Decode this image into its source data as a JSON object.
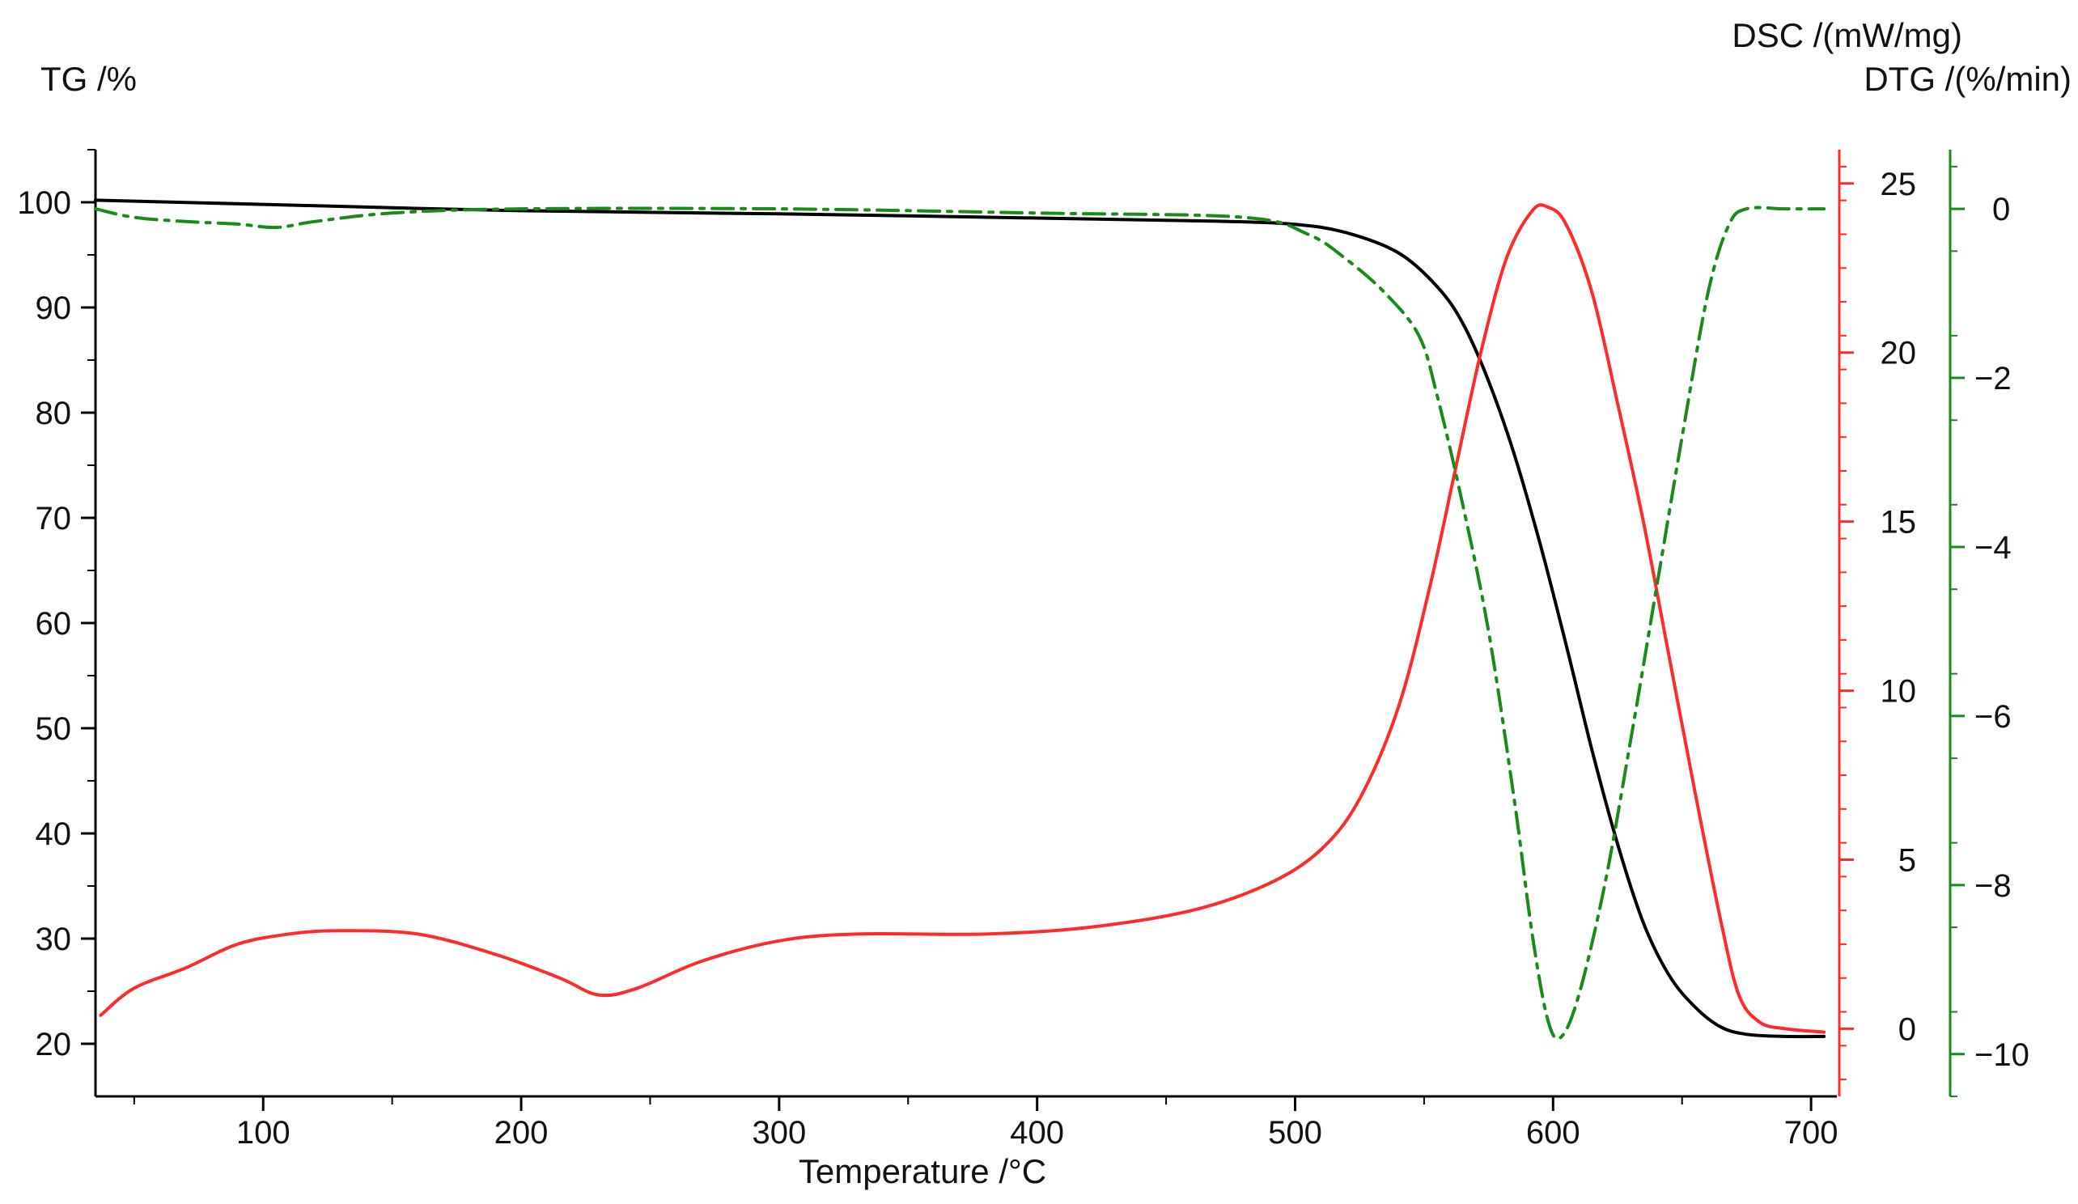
{
  "chart_data": {
    "type": "line",
    "xlabel": "Temperature /°C",
    "xlim": [
      35,
      710
    ],
    "x_ticks": [
      100,
      200,
      300,
      400,
      500,
      600,
      700
    ],
    "axes": {
      "tg": {
        "label": "TG /%",
        "lim": [
          15,
          105
        ],
        "ticks": [
          20,
          30,
          40,
          50,
          60,
          70,
          80,
          90,
          100
        ],
        "color": "#000000"
      },
      "dsc": {
        "label": "DSC /(mW/mg)",
        "lim": [
          -2,
          26
        ],
        "ticks": [
          0,
          5,
          10,
          15,
          20,
          25
        ],
        "color": "#ff2a2a"
      },
      "dtg": {
        "label": "DTG /(%/min)",
        "lim": [
          -10.5,
          0.7
        ],
        "ticks": [
          0,
          -2,
          -4,
          -6,
          -8,
          -10
        ],
        "color": "#1a8a1a"
      }
    },
    "grid": false,
    "series": [
      {
        "key": "tg",
        "axis": "tg",
        "color": "#000000",
        "dash": "solid",
        "points": [
          [
            35,
            100.2
          ],
          [
            100,
            99.8
          ],
          [
            200,
            99.2
          ],
          [
            300,
            98.9
          ],
          [
            400,
            98.5
          ],
          [
            470,
            98.2
          ],
          [
            500,
            97.9
          ],
          [
            520,
            97.1
          ],
          [
            540,
            95.2
          ],
          [
            555,
            92.0
          ],
          [
            565,
            88.5
          ],
          [
            575,
            83.0
          ],
          [
            585,
            76.0
          ],
          [
            595,
            67.5
          ],
          [
            605,
            58.0
          ],
          [
            615,
            48.0
          ],
          [
            625,
            39.0
          ],
          [
            635,
            31.5
          ],
          [
            645,
            26.5
          ],
          [
            655,
            23.5
          ],
          [
            665,
            21.6
          ],
          [
            675,
            20.9
          ],
          [
            690,
            20.7
          ],
          [
            705,
            20.7
          ]
        ]
      },
      {
        "key": "dsc",
        "axis": "dsc",
        "color": "#ff2a2a",
        "dash": "solid",
        "points": [
          [
            37,
            0.4
          ],
          [
            50,
            1.2
          ],
          [
            70,
            1.8
          ],
          [
            90,
            2.5
          ],
          [
            110,
            2.8
          ],
          [
            130,
            2.9
          ],
          [
            160,
            2.8
          ],
          [
            190,
            2.2
          ],
          [
            215,
            1.5
          ],
          [
            230,
            1.0
          ],
          [
            245,
            1.2
          ],
          [
            270,
            2.0
          ],
          [
            300,
            2.6
          ],
          [
            330,
            2.8
          ],
          [
            380,
            2.8
          ],
          [
            420,
            3.0
          ],
          [
            460,
            3.5
          ],
          [
            490,
            4.3
          ],
          [
            510,
            5.3
          ],
          [
            525,
            6.8
          ],
          [
            540,
            9.5
          ],
          [
            552,
            13.0
          ],
          [
            562,
            16.5
          ],
          [
            572,
            20.0
          ],
          [
            582,
            22.8
          ],
          [
            592,
            24.2
          ],
          [
            598,
            24.3
          ],
          [
            605,
            23.8
          ],
          [
            615,
            21.8
          ],
          [
            625,
            18.5
          ],
          [
            635,
            15.0
          ],
          [
            645,
            11.0
          ],
          [
            655,
            7.0
          ],
          [
            665,
            3.2
          ],
          [
            672,
            1.0
          ],
          [
            680,
            0.2
          ],
          [
            690,
            0.0
          ],
          [
            705,
            -0.1
          ]
        ]
      },
      {
        "key": "dtg",
        "axis": "dtg",
        "color": "#1a8a1a",
        "dash": "dashdot",
        "points": [
          [
            35,
            0.0
          ],
          [
            50,
            -0.1
          ],
          [
            70,
            -0.15
          ],
          [
            90,
            -0.18
          ],
          [
            105,
            -0.22
          ],
          [
            120,
            -0.15
          ],
          [
            150,
            -0.05
          ],
          [
            200,
            0.0
          ],
          [
            300,
            0.0
          ],
          [
            400,
            -0.05
          ],
          [
            480,
            -0.1
          ],
          [
            505,
            -0.3
          ],
          [
            520,
            -0.6
          ],
          [
            535,
            -1.0
          ],
          [
            548,
            -1.5
          ],
          [
            555,
            -2.2
          ],
          [
            565,
            -3.5
          ],
          [
            575,
            -5.0
          ],
          [
            585,
            -7.0
          ],
          [
            592,
            -8.6
          ],
          [
            598,
            -9.6
          ],
          [
            603,
            -9.8
          ],
          [
            610,
            -9.3
          ],
          [
            620,
            -8.0
          ],
          [
            630,
            -6.3
          ],
          [
            640,
            -4.5
          ],
          [
            650,
            -2.7
          ],
          [
            660,
            -1.0
          ],
          [
            668,
            -0.2
          ],
          [
            675,
            0.0
          ],
          [
            690,
            0.0
          ],
          [
            705,
            0.0
          ]
        ]
      }
    ]
  }
}
